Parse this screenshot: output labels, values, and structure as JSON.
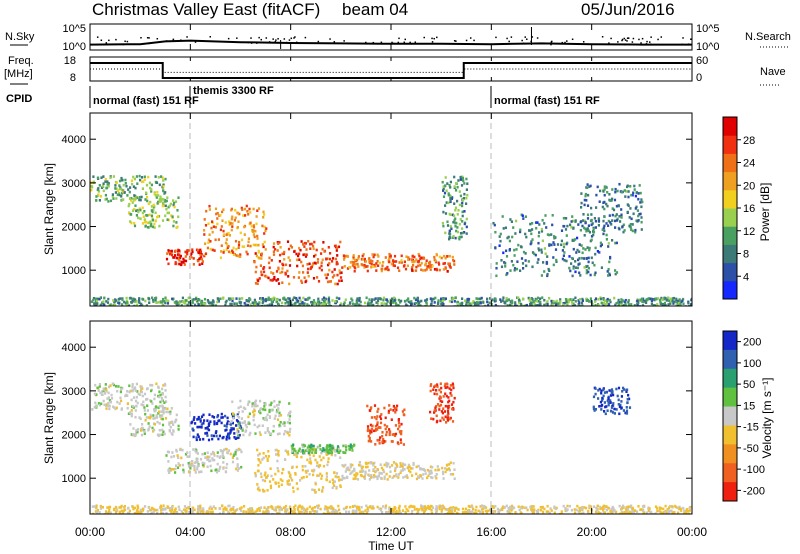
{
  "header": {
    "title": "Christmas Valley East (fitACF)",
    "beam": "beam 04",
    "date": "05/Jun/2016"
  },
  "top_panels": {
    "nsky_label": "N.Sky",
    "nsky_ticks": [
      "10^5",
      "10^0"
    ],
    "nsearch_label": "N.Search",
    "nsearch_ticks": [
      "10^5",
      "10^0"
    ],
    "freq_label_1": "Freq.",
    "freq_label_2": "[MHz]",
    "freq_ticks": [
      "18",
      "8"
    ],
    "nave_label": "Nave",
    "nave_ticks": [
      "60",
      "0"
    ],
    "cpid_label": "CPID",
    "cpid_segments": [
      {
        "label": "normal (fast)  151  RF",
        "start_hour": 0
      },
      {
        "label": "themis  3300  RF",
        "start_hour": 4
      },
      {
        "label": "normal (fast)  151  RF",
        "start_hour": 16
      }
    ]
  },
  "x_axis": {
    "ticks": [
      "00:00",
      "04:00",
      "08:00",
      "12:00",
      "16:00",
      "20:00",
      "00:00"
    ],
    "label": "Time UT"
  },
  "power_panel": {
    "ylabel": "Slant Range [km]",
    "yticks": [
      "4000",
      "3000",
      "2000",
      "1000"
    ],
    "colorbar_label": "Power [dB]",
    "colorbar_ticks": [
      "28",
      "24",
      "20",
      "16",
      "12",
      "8",
      "4"
    ],
    "colors": [
      "#1428ff",
      "#2c50a8",
      "#3c7a78",
      "#4aa060",
      "#9ad050",
      "#f2d020",
      "#f0a020",
      "#f07018",
      "#f03010",
      "#e00000"
    ]
  },
  "velocity_panel": {
    "ylabel": "Slant Range [km]",
    "yticks": [
      "4000",
      "3000",
      "2000",
      "1000"
    ],
    "colorbar_label": "Velocity [m s⁻¹]",
    "colorbar_ticks": [
      "200",
      "100",
      "50",
      "15",
      "-15",
      "-50",
      "-100",
      "-200"
    ],
    "colors": [
      "#1428c8",
      "#3060b0",
      "#2aa070",
      "#60c040",
      "#c8c8c8",
      "#f0c030",
      "#f09020",
      "#f06020",
      "#f02010"
    ]
  },
  "chart_data": [
    {
      "type": "line",
      "name": "N.Sky / N.Search",
      "x_hours": [
        0,
        2,
        3,
        4,
        6,
        8,
        10,
        12,
        14,
        16,
        18,
        20,
        22,
        24
      ],
      "nsky_log10": [
        0.6,
        0.7,
        1.4,
        1.6,
        1.2,
        1.0,
        0.9,
        0.8,
        0.8,
        0.7,
        0.9,
        0.7,
        0.6,
        0.6
      ]
    },
    {
      "type": "line",
      "name": "Freq / Nave",
      "x_hours": [
        0,
        2.9,
        2.9,
        14.9,
        14.9,
        24
      ],
      "freq_mhz": [
        16,
        16,
        8.5,
        8.5,
        16,
        16
      ],
      "nave": [
        30,
        30,
        20,
        20,
        30,
        30
      ],
      "freq_ylim": [
        8,
        18
      ],
      "nave_ylim": [
        0,
        60
      ]
    },
    {
      "type": "heatmap",
      "name": "Power",
      "xlim_hours": [
        0,
        24
      ],
      "ylim_km": [
        180,
        4600
      ],
      "clim_db": [
        0,
        32
      ],
      "features": [
        {
          "t_start": 0.0,
          "t_end": 3.0,
          "r_start": 2600,
          "r_end": 3200,
          "value_db": 12
        },
        {
          "t_start": 1.5,
          "t_end": 3.5,
          "r_start": 2000,
          "r_end": 2700,
          "value_db": 14
        },
        {
          "t_start": 3.0,
          "t_end": 4.5,
          "r_start": 1150,
          "r_end": 1500,
          "value_db": 28
        },
        {
          "t_start": 4.5,
          "t_end": 7.0,
          "r_start": 1300,
          "r_end": 2500,
          "value_db": 22
        },
        {
          "t_start": 6.5,
          "t_end": 10.0,
          "r_start": 700,
          "r_end": 1700,
          "value_db": 26
        },
        {
          "t_start": 10.0,
          "t_end": 14.5,
          "r_start": 1000,
          "r_end": 1400,
          "value_db": 24
        },
        {
          "t_start": 14.0,
          "t_end": 15.0,
          "r_start": 1700,
          "r_end": 3200,
          "value_db": 10
        },
        {
          "t_start": 16.0,
          "t_end": 21.0,
          "r_start": 900,
          "r_end": 2300,
          "value_db": 8
        },
        {
          "t_start": 19.5,
          "t_end": 22.0,
          "r_start": 1900,
          "r_end": 3000,
          "value_db": 8
        },
        {
          "t_start": 0.0,
          "t_end": 24.0,
          "r_start": 180,
          "r_end": 400,
          "value_db": 10
        }
      ]
    },
    {
      "type": "heatmap",
      "name": "Velocity",
      "xlim_hours": [
        0,
        24
      ],
      "ylim_km": [
        180,
        4600
      ],
      "clim_ms": [
        -250,
        250
      ],
      "features": [
        {
          "t_start": 0.0,
          "t_end": 3.0,
          "r_start": 2600,
          "r_end": 3200,
          "value_ms": 0
        },
        {
          "t_start": 1.5,
          "t_end": 3.5,
          "r_start": 2000,
          "r_end": 2700,
          "value_ms": 0
        },
        {
          "t_start": 3.0,
          "t_end": 6.0,
          "r_start": 1150,
          "r_end": 1700,
          "value_ms": 0
        },
        {
          "t_start": 4.0,
          "t_end": 6.0,
          "r_start": 1900,
          "r_end": 2500,
          "value_ms": 220
        },
        {
          "t_start": 5.5,
          "t_end": 8.0,
          "r_start": 2000,
          "r_end": 2800,
          "value_ms": 5
        },
        {
          "t_start": 6.5,
          "t_end": 10.0,
          "r_start": 700,
          "r_end": 1700,
          "value_ms": -40
        },
        {
          "t_start": 8.0,
          "t_end": 10.5,
          "r_start": 1600,
          "r_end": 1800,
          "value_ms": 60
        },
        {
          "t_start": 10.0,
          "t_end": 14.5,
          "r_start": 1000,
          "r_end": 1400,
          "value_ms": -20
        },
        {
          "t_start": 11.0,
          "t_end": 12.5,
          "r_start": 1800,
          "r_end": 2700,
          "value_ms": -180
        },
        {
          "t_start": 13.5,
          "t_end": 14.5,
          "r_start": 2300,
          "r_end": 3200,
          "value_ms": -200
        },
        {
          "t_start": 20.0,
          "t_end": 21.5,
          "r_start": 2500,
          "r_end": 3100,
          "value_ms": 180
        },
        {
          "t_start": 0.0,
          "t_end": 24.0,
          "r_start": 180,
          "r_end": 400,
          "value_ms": -40
        }
      ]
    }
  ]
}
